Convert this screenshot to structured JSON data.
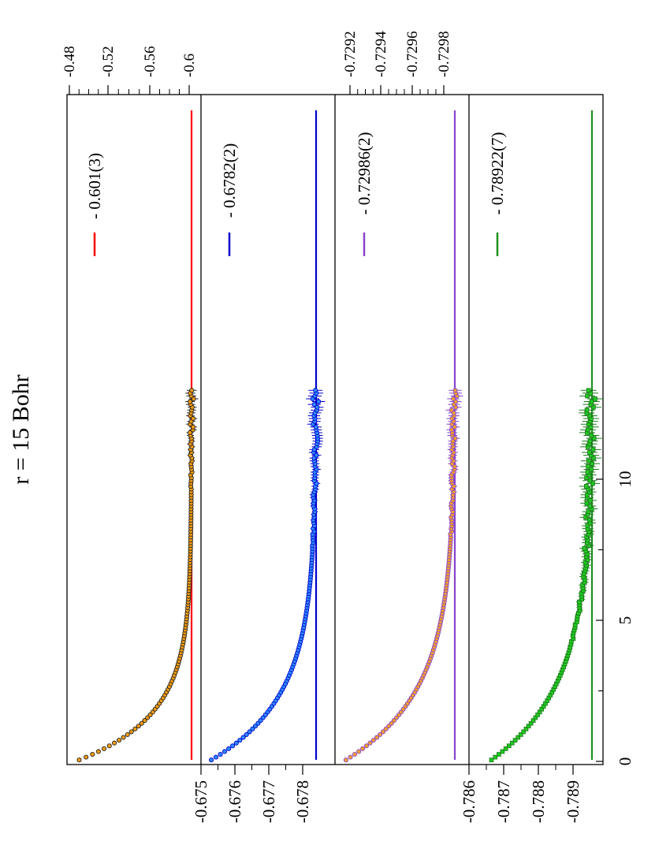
{
  "figure": {
    "title": "r = 15 Bohr"
  },
  "colors": {
    "axes": "#000000",
    "panel1_marker": "#f39c12",
    "panel1_line": "#ff0000",
    "panel2_marker": "#2f8cff",
    "panel2_line": "#0000cc",
    "panel3_marker": "#f0a030",
    "panel3_edge": "#8844cc",
    "panel3_line": "#8844cc",
    "panel4_marker": "#22cc22",
    "panel4_line": "#1f8f1f"
  },
  "chart_data": [
    {
      "type": "scatter",
      "panel": 1,
      "x_ticks": [
        0,
        5,
        10
      ],
      "right_axis_ticks": [
        "-0.48",
        "-0.52",
        "-0.56",
        "-0.6"
      ],
      "left_axis_ticks": [],
      "legend_label": "- 0.601(3)",
      "reference_value": -0.601,
      "marker": "circle",
      "x_start": 0.05,
      "x_step": 0.1,
      "point_count": 132,
      "decay": {
        "start": 8.5,
        "tau": 1.6
      },
      "tail_noise_from_x": 9.5,
      "values_note": ""
    },
    {
      "type": "scatter",
      "panel": 2,
      "left_axis_ticks": [
        "-0.675",
        "-0.676",
        "-0.677",
        "-0.678"
      ],
      "right_axis_ticks": [],
      "legend_label": "- 0.6782(2)",
      "reference_value": -0.6782,
      "ylim": [
        -0.6787,
        -0.6746
      ],
      "marker": "circle",
      "x_start": 0.05,
      "x_step": 0.1,
      "point_count": 132,
      "decay": {
        "start": 7.95,
        "tau": 2.2
      },
      "tail_noise_from_x": 7.5
    },
    {
      "type": "scatter",
      "panel": 3,
      "left_axis_ticks": [],
      "right_axis_ticks": [
        "-0.7292",
        "-0.7294",
        "-0.7296",
        "-0.7298"
      ],
      "legend_label": "- 0.72986(2)",
      "reference_value": -0.72986,
      "marker": "circle",
      "x_start": 0.05,
      "x_step": 0.1,
      "point_count": 132,
      "decay": {
        "start": 8.0,
        "tau": 2.4
      },
      "tail_noise_from_x": 8.0
    },
    {
      "type": "scatter",
      "panel": 4,
      "left_axis_ticks": [
        "-0.786",
        "-0.787",
        "-0.788",
        "-0.789"
      ],
      "right_axis_ticks": [],
      "legend_label": "- 0.78922(7)",
      "reference_value": -0.78922,
      "ylim": [
        -0.7895,
        -0.7859
      ],
      "marker": "square",
      "x_start": 0.05,
      "x_step": 0.1,
      "point_count": 132,
      "decay": {
        "start": 3.05,
        "tau": 2.6
      },
      "tail_noise_from_x": 4.0
    }
  ]
}
